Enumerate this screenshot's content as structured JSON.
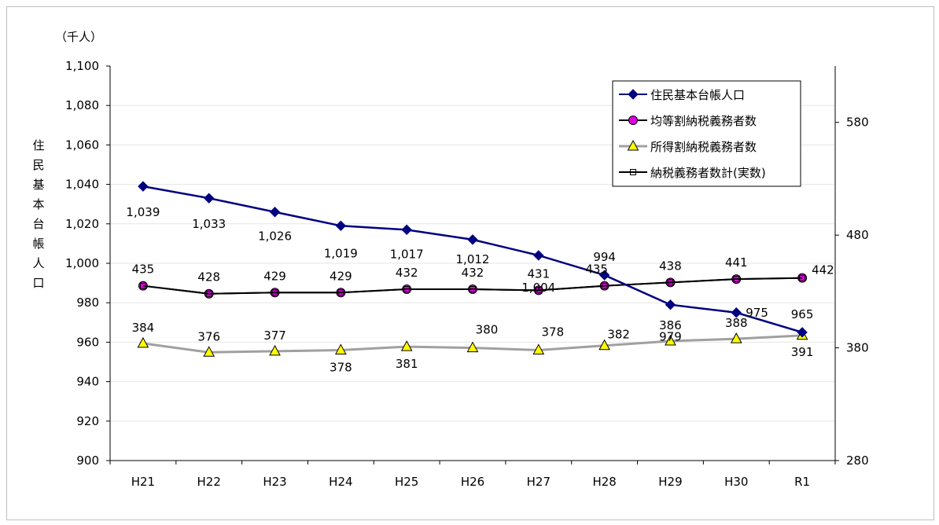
{
  "chart_data": {
    "type": "line",
    "unit_label": "（千人）",
    "ylabel": "住民基本台帳人口",
    "categories": [
      "H21",
      "H22",
      "H23",
      "H24",
      "H25",
      "H26",
      "H27",
      "H28",
      "H29",
      "H30",
      "R1"
    ],
    "y_left": {
      "min": 900,
      "max": 1100,
      "step": 20,
      "ticks": [
        "900",
        "920",
        "940",
        "960",
        "980",
        "1,000",
        "1,020",
        "1,040",
        "1,060",
        "1,080",
        "1,100"
      ]
    },
    "y_right": {
      "min": 280,
      "max": 630,
      "ticks": [
        280,
        380,
        480,
        580
      ],
      "tick_labels": [
        "280",
        "380",
        "480",
        "580"
      ]
    },
    "series": [
      {
        "name": "住民基本台帳人口",
        "axis": "left",
        "color": "#000080",
        "marker": "diamond",
        "values": [
          1039,
          1033,
          1026,
          1019,
          1017,
          1012,
          1004,
          994,
          979,
          975,
          965
        ],
        "labels": [
          "1,039",
          "1,033",
          "1,026",
          "1,019",
          "1,017",
          "1,012",
          "1,004",
          "994",
          "979",
          "975",
          "965"
        ]
      },
      {
        "name": "均等割納税義務者数",
        "axis": "right",
        "color": "#000000",
        "marker": "circle",
        "marker_color": "#e000e0",
        "values": [
          435,
          428,
          429,
          429,
          432,
          432,
          431,
          435,
          438,
          441,
          442
        ],
        "labels": [
          "435",
          "428",
          "429",
          "429",
          "432",
          "432",
          "431",
          "435",
          "438",
          "441",
          "442"
        ]
      },
      {
        "name": "所得割納税義務者数",
        "axis": "right",
        "color": "#a0a0a0",
        "marker": "triangle",
        "marker_color": "#ffff00",
        "values": [
          384,
          376,
          377,
          378,
          381,
          380,
          378,
          382,
          386,
          388,
          391
        ],
        "labels": [
          "384",
          "376",
          "377",
          "378",
          "381",
          "380",
          "378",
          "382",
          "386",
          "388",
          "391"
        ]
      },
      {
        "name": "納税義務者数計(実数)",
        "axis": "right",
        "color": "#000000",
        "marker": "square",
        "marker_color": "#ffffff",
        "values": [
          435,
          428,
          429,
          429,
          432,
          432,
          431,
          435,
          438,
          441,
          442
        ]
      }
    ],
    "legend_position": "top-right",
    "grid": true
  }
}
